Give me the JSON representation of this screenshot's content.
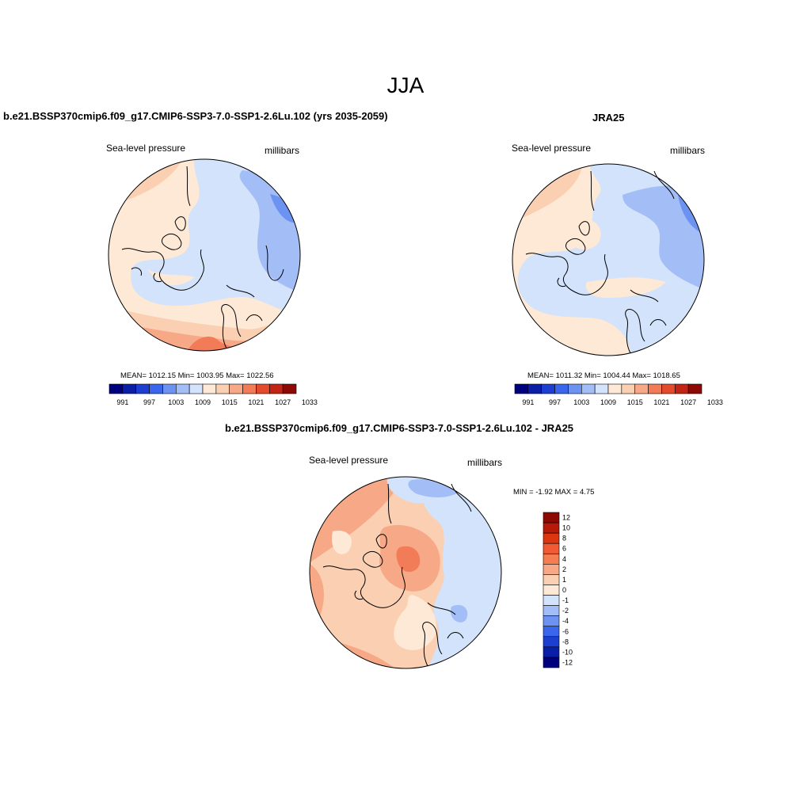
{
  "figure": {
    "season": "JJA"
  },
  "panels": {
    "model": {
      "title": "b.e21.BSSP370cmip6.f09_g17.CMIP6-SSP3-7.0-SSP1-2.6Lu.102 (yrs 2035-2059)",
      "variable": "Sea-level pressure",
      "units": "millibars",
      "stats": "MEAN= 1012.15  Min= 1003.95  Max= 1022.56"
    },
    "obs": {
      "title": "JRA25",
      "variable": "Sea-level pressure",
      "units": "millibars",
      "stats": "MEAN= 1011.32  Min= 1004.44  Max= 1018.65"
    },
    "diff": {
      "title": "b.e21.BSSP370cmip6.f09_g17.CMIP6-SSP3-7.0-SSP1-2.6Lu.102 - JRA25",
      "variable": "Sea-level pressure",
      "units": "millibars",
      "stats": "MIN =  -1.92 MAX =   4.75"
    }
  },
  "colorbars": {
    "abs": {
      "colors": [
        "#00007f",
        "#0a1fa8",
        "#1c3fd1",
        "#3a66ee",
        "#6c93f2",
        "#a3bdf6",
        "#d2e3fb",
        "#fde9d6",
        "#fbcfb1",
        "#f7a987",
        "#f27b58",
        "#e44b2c",
        "#c22514",
        "#8c0a03"
      ],
      "labels": [
        "991",
        "997",
        "1003",
        "1009",
        "1015",
        "1021",
        "1027",
        "1033"
      ]
    },
    "diff": {
      "colors": [
        "#8c0a03",
        "#b81a0a",
        "#dc3512",
        "#f25a35",
        "#f57d52",
        "#f7a987",
        "#fbcfb1",
        "#fde9d6",
        "#d2e3fb",
        "#a3bdf6",
        "#6c93f2",
        "#3a66ee",
        "#1c3fd1",
        "#0a1fa8",
        "#00007f"
      ],
      "labels": [
        "12",
        "10",
        "8",
        "6",
        "4",
        "2",
        "1",
        "0",
        "-1",
        "-2",
        "-4",
        "-6",
        "-8",
        "-10",
        "-12"
      ]
    }
  },
  "map_colors": {
    "peach": "#fde9d6",
    "salmon": "#fbcfb1",
    "coral": "#f7a987",
    "orange": "#f27b58",
    "paleblue": "#d2e3fb",
    "lightblue": "#a3bdf6",
    "midblue": "#6c93f2"
  }
}
